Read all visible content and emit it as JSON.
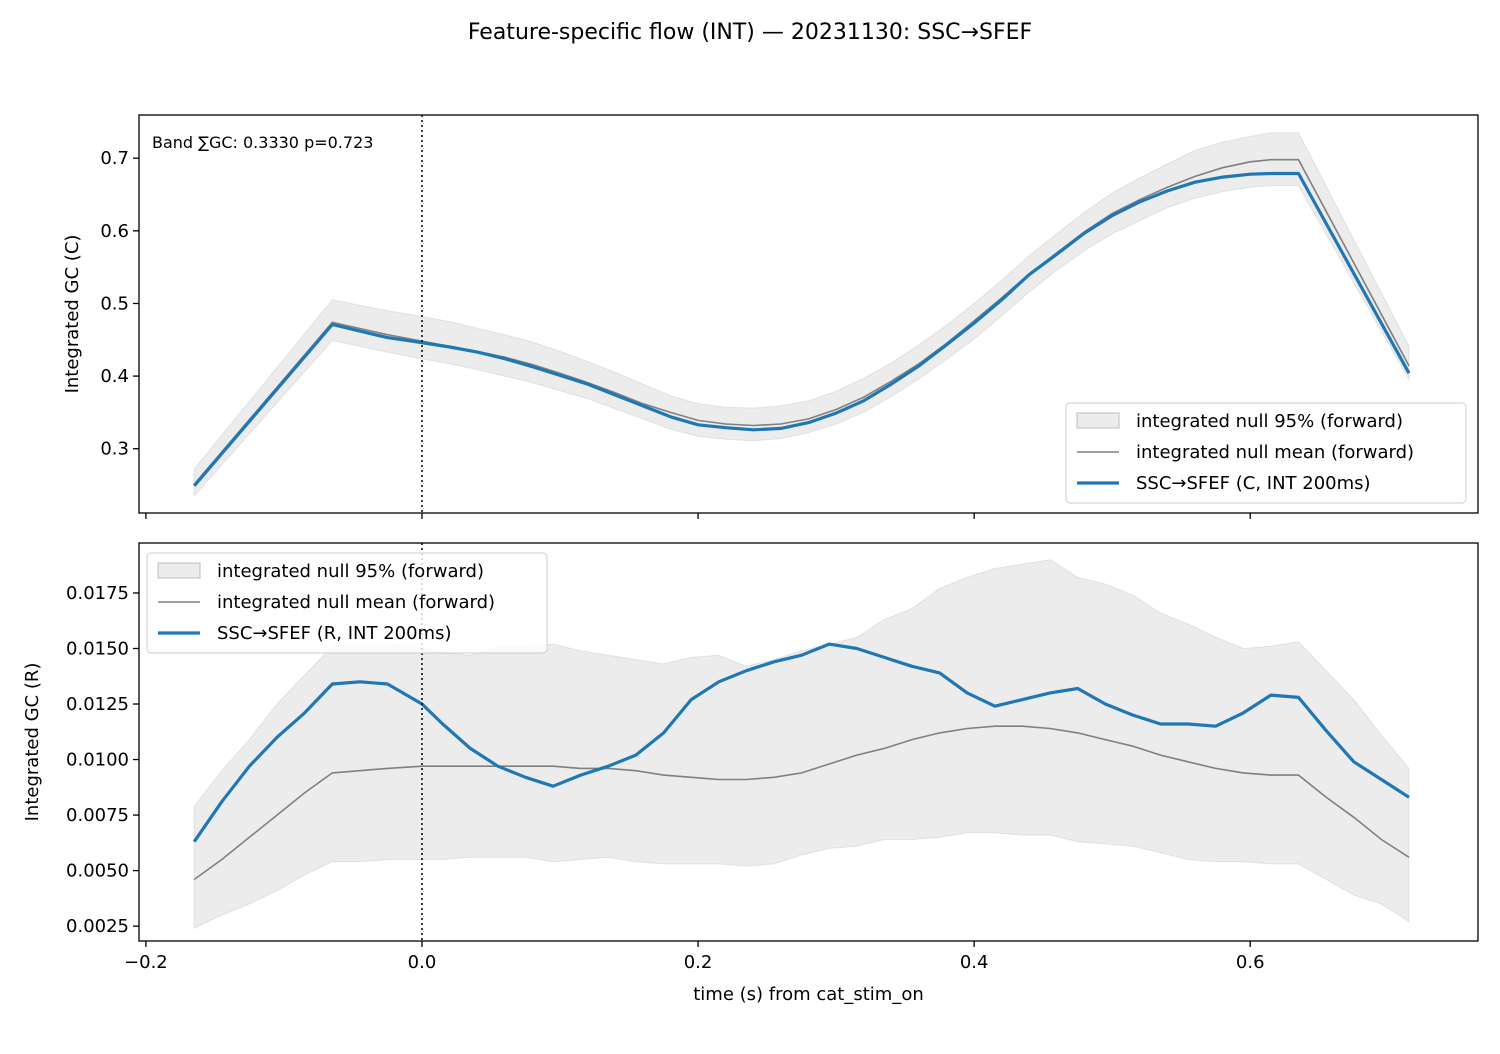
{
  "figure": {
    "title": "Feature-specific flow (INT) — 20231130: SSC→SFEF"
  },
  "colors": {
    "series": "#1f77b4",
    "null_mean": "#808080",
    "null_band": "#d9d9d9"
  },
  "chart_data": [
    {
      "type": "line",
      "ylabel": "Integrated GC (C)",
      "xlabel": "",
      "xlim": [
        -0.205,
        0.765
      ],
      "ylim": [
        0.2115,
        0.7595
      ],
      "yticks": [
        0.3,
        0.4,
        0.5,
        0.6,
        0.7
      ],
      "ytick_labels": [
        "0.3",
        "0.4",
        "0.5",
        "0.6",
        "0.7"
      ],
      "xticks": [
        -0.2,
        0.0,
        0.2,
        0.4,
        0.6
      ],
      "xtick_labels": [
        "",
        "",
        "",
        "",
        ""
      ],
      "vline_x": 0.0,
      "annotation": "Band ∑GC: 0.3330  p=0.723",
      "legend_position": "lower-right",
      "legend": {
        "band": "integrated null 95% (forward)",
        "mean": "integrated null mean (forward)",
        "series": "SSC→SFEF (C, INT 200ms)"
      },
      "x": [
        -0.165,
        -0.065,
        -0.025,
        0.0,
        0.02,
        0.04,
        0.06,
        0.08,
        0.1,
        0.12,
        0.14,
        0.16,
        0.18,
        0.2,
        0.22,
        0.24,
        0.26,
        0.28,
        0.3,
        0.32,
        0.34,
        0.36,
        0.38,
        0.4,
        0.42,
        0.44,
        0.46,
        0.48,
        0.5,
        0.52,
        0.54,
        0.56,
        0.58,
        0.6,
        0.615,
        0.635,
        0.715
      ],
      "series": [
        {
          "role": "series",
          "values": [
            0.249,
            0.471,
            0.453,
            0.446,
            0.44,
            0.433,
            0.424,
            0.413,
            0.401,
            0.389,
            0.374,
            0.359,
            0.344,
            0.333,
            0.329,
            0.326,
            0.328,
            0.336,
            0.349,
            0.366,
            0.389,
            0.414,
            0.443,
            0.473,
            0.505,
            0.54,
            0.568,
            0.597,
            0.621,
            0.64,
            0.655,
            0.667,
            0.674,
            0.678,
            0.679,
            0.679,
            0.404
          ]
        },
        {
          "role": "mean",
          "values": [
            0.251,
            0.474,
            0.457,
            0.448,
            0.441,
            0.434,
            0.426,
            0.416,
            0.404,
            0.391,
            0.377,
            0.362,
            0.35,
            0.339,
            0.334,
            0.332,
            0.334,
            0.341,
            0.354,
            0.371,
            0.393,
            0.417,
            0.445,
            0.476,
            0.508,
            0.541,
            0.57,
            0.599,
            0.624,
            0.643,
            0.66,
            0.675,
            0.687,
            0.695,
            0.698,
            0.698,
            0.414
          ]
        },
        {
          "role": "band_upper",
          "values": [
            0.272,
            0.505,
            0.49,
            0.482,
            0.475,
            0.466,
            0.457,
            0.447,
            0.434,
            0.42,
            0.405,
            0.389,
            0.373,
            0.362,
            0.357,
            0.356,
            0.359,
            0.366,
            0.379,
            0.397,
            0.418,
            0.443,
            0.47,
            0.5,
            0.532,
            0.566,
            0.596,
            0.626,
            0.652,
            0.673,
            0.692,
            0.711,
            0.722,
            0.73,
            0.735,
            0.735,
            0.441
          ]
        },
        {
          "role": "band_lower",
          "values": [
            0.235,
            0.449,
            0.433,
            0.424,
            0.417,
            0.409,
            0.4,
            0.391,
            0.38,
            0.369,
            0.355,
            0.341,
            0.327,
            0.317,
            0.313,
            0.311,
            0.314,
            0.322,
            0.334,
            0.35,
            0.372,
            0.396,
            0.423,
            0.451,
            0.483,
            0.516,
            0.546,
            0.573,
            0.596,
            0.614,
            0.632,
            0.645,
            0.654,
            0.66,
            0.662,
            0.662,
            0.395
          ]
        }
      ]
    },
    {
      "type": "line",
      "ylabel": "Integrated GC (R)",
      "xlabel": "time (s) from cat_stim_on",
      "xlim": [
        -0.205,
        0.765
      ],
      "ylim": [
        0.00183,
        0.01975
      ],
      "yticks": [
        0.0025,
        0.005,
        0.0075,
        0.01,
        0.0125,
        0.015,
        0.0175
      ],
      "ytick_labels": [
        "0.0025",
        "0.0050",
        "0.0075",
        "0.0100",
        "0.0125",
        "0.0150",
        "0.0175"
      ],
      "xticks": [
        -0.2,
        0.0,
        0.2,
        0.4,
        0.6
      ],
      "xtick_labels": [
        "−0.2",
        "0.0",
        "0.2",
        "0.4",
        "0.6"
      ],
      "vline_x": 0.0,
      "legend_position": "upper-left",
      "legend": {
        "band": "integrated null 95% (forward)",
        "mean": "integrated null mean (forward)",
        "series": "SSC→SFEF (R, INT 200ms)"
      },
      "x": [
        -0.165,
        -0.145,
        -0.125,
        -0.105,
        -0.085,
        -0.065,
        -0.045,
        -0.025,
        0.0,
        0.015,
        0.035,
        0.055,
        0.075,
        0.095,
        0.115,
        0.135,
        0.155,
        0.175,
        0.195,
        0.215,
        0.235,
        0.255,
        0.275,
        0.295,
        0.315,
        0.335,
        0.355,
        0.375,
        0.395,
        0.415,
        0.435,
        0.455,
        0.475,
        0.495,
        0.515,
        0.535,
        0.555,
        0.575,
        0.595,
        0.615,
        0.635,
        0.655,
        0.675,
        0.695,
        0.715
      ],
      "series": [
        {
          "role": "series",
          "values": [
            0.0063,
            0.0081,
            0.0097,
            0.011,
            0.0121,
            0.0134,
            0.0135,
            0.0134,
            0.0125,
            0.0116,
            0.0105,
            0.0097,
            0.0092,
            0.0088,
            0.0093,
            0.0097,
            0.0102,
            0.0112,
            0.0127,
            0.0135,
            0.014,
            0.0144,
            0.0147,
            0.0152,
            0.015,
            0.0146,
            0.0142,
            0.0139,
            0.013,
            0.0124,
            0.0127,
            0.013,
            0.0132,
            0.0125,
            0.012,
            0.0116,
            0.0116,
            0.0115,
            0.0121,
            0.0129,
            0.0128,
            0.0113,
            0.0099,
            0.0091,
            0.0083
          ]
        },
        {
          "role": "mean",
          "values": [
            0.0046,
            0.0055,
            0.0065,
            0.0075,
            0.0085,
            0.0094,
            0.0095,
            0.0096,
            0.0097,
            0.0097,
            0.0097,
            0.0097,
            0.0097,
            0.0097,
            0.0096,
            0.0096,
            0.0095,
            0.0093,
            0.0092,
            0.0091,
            0.0091,
            0.0092,
            0.0094,
            0.0098,
            0.0102,
            0.0105,
            0.0109,
            0.0112,
            0.0114,
            0.0115,
            0.0115,
            0.0114,
            0.0112,
            0.0109,
            0.0106,
            0.0102,
            0.0099,
            0.0096,
            0.0094,
            0.0093,
            0.0093,
            0.0083,
            0.0074,
            0.0064,
            0.0056
          ]
        },
        {
          "role": "band_upper",
          "values": [
            0.0079,
            0.0095,
            0.0109,
            0.0125,
            0.0138,
            0.0151,
            0.0152,
            0.0152,
            0.0151,
            0.0148,
            0.0147,
            0.0151,
            0.0151,
            0.0152,
            0.0149,
            0.0147,
            0.0145,
            0.0143,
            0.0146,
            0.0147,
            0.0142,
            0.0145,
            0.0149,
            0.0152,
            0.0155,
            0.0163,
            0.0168,
            0.0177,
            0.0182,
            0.0186,
            0.0188,
            0.019,
            0.0182,
            0.0179,
            0.0174,
            0.0166,
            0.0161,
            0.0155,
            0.015,
            0.0151,
            0.0153,
            0.014,
            0.0127,
            0.0111,
            0.0096
          ]
        },
        {
          "role": "band_lower",
          "values": [
            0.0024,
            0.003,
            0.0035,
            0.0041,
            0.0048,
            0.0054,
            0.0054,
            0.0055,
            0.0055,
            0.0055,
            0.0056,
            0.0056,
            0.0056,
            0.0054,
            0.0055,
            0.0056,
            0.0054,
            0.0053,
            0.0053,
            0.0053,
            0.0052,
            0.0053,
            0.0057,
            0.006,
            0.0061,
            0.0064,
            0.0064,
            0.0065,
            0.0067,
            0.0067,
            0.0066,
            0.0066,
            0.0063,
            0.0062,
            0.0061,
            0.0058,
            0.0055,
            0.0054,
            0.0054,
            0.0053,
            0.0053,
            0.0046,
            0.0039,
            0.0035,
            0.0027
          ]
        }
      ]
    }
  ]
}
